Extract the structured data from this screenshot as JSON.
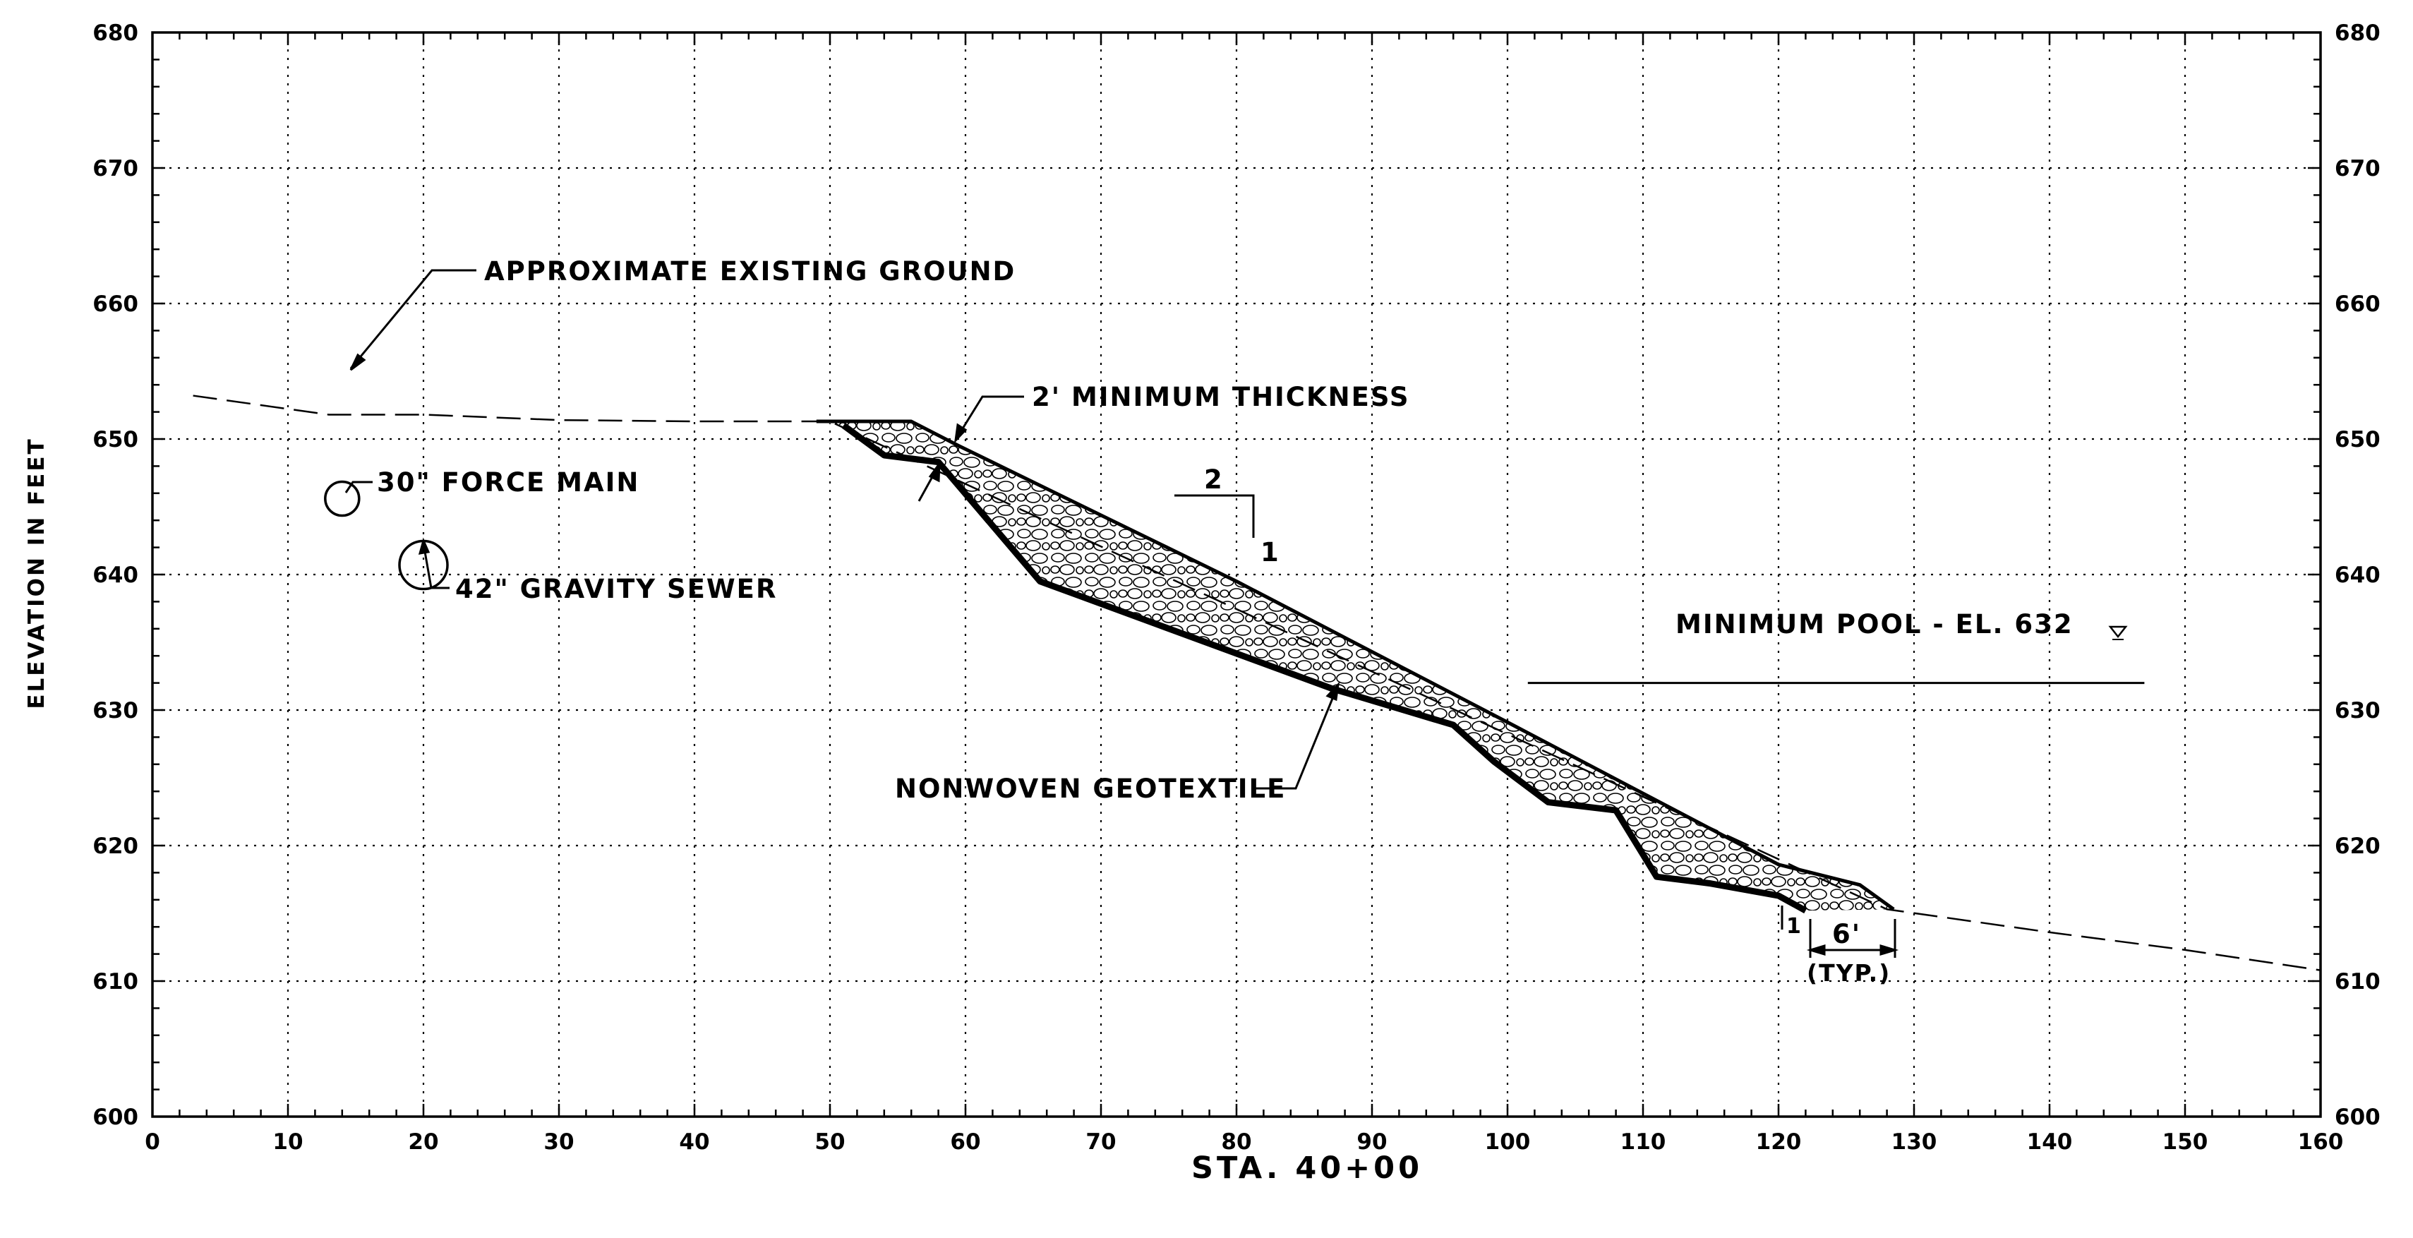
{
  "section": {
    "station_label": "STA. 40+00",
    "y_axis_title": "ELEVATION IN FEET",
    "x_ticks": [
      "0",
      "10",
      "20",
      "30",
      "40",
      "50",
      "60",
      "70",
      "80",
      "90",
      "100",
      "110",
      "120",
      "130",
      "140",
      "150",
      "160"
    ],
    "y_ticks": [
      "600",
      "610",
      "620",
      "630",
      "640",
      "650",
      "660",
      "670",
      "680"
    ],
    "x_range": [
      0,
      160
    ],
    "y_range": [
      600,
      680
    ],
    "grid": true,
    "notes": {
      "existing_ground": "APPROXIMATE EXISTING GROUND",
      "min_thickness": "2' MINIMUM THICKNESS",
      "force_main": "30\" FORCE MAIN",
      "gravity_sewer": "42\" GRAVITY SEWER",
      "geotextile": "NONWOVEN GEOTEXTILE",
      "min_pool": "MINIMUM POOL - EL. 632",
      "slope_run": "2",
      "slope_rise": "1",
      "toe_rise": "1",
      "toe_width": "6'",
      "toe_typ": "(TYP.)"
    }
  },
  "chart_data": {
    "type": "line",
    "title": "",
    "xlabel": "STA. 40+00",
    "ylabel": "ELEVATION IN FEET",
    "xlim": [
      0,
      160
    ],
    "ylim": [
      600,
      680
    ],
    "series": [
      {
        "name": "APPROXIMATE EXISTING GROUND",
        "style": "dashed",
        "x": [
          3,
          13,
          20,
          30,
          40,
          50,
          128,
          140,
          150,
          160
        ],
        "y": [
          653.2,
          651.8,
          651.8,
          651.4,
          651.3,
          651.3,
          615.3,
          613.6,
          612.3,
          610.8
        ]
      },
      {
        "name": "riprap-top",
        "style": "solid",
        "x": [
          49,
          56,
          59.5,
          80,
          100,
          120,
          126,
          128.5
        ],
        "y": [
          651.3,
          651.3,
          649.5,
          639.5,
          629.1,
          618.6,
          617.1,
          615.3
        ]
      },
      {
        "name": "riprap-bottom",
        "style": "solid",
        "x": [
          51,
          54,
          58,
          65.5,
          87,
          96,
          99,
          103,
          108,
          111,
          115,
          120,
          122
        ],
        "y": [
          651,
          648.8,
          648.3,
          639.5,
          631.6,
          628.9,
          626.2,
          623.2,
          622.6,
          617.7,
          617.2,
          616.3,
          615.2
        ]
      },
      {
        "name": "MINIMUM POOL - EL. 632",
        "style": "solid",
        "x": [
          101.5,
          147
        ],
        "y": [
          632,
          632
        ]
      }
    ],
    "pipes": [
      {
        "name": "30\" FORCE MAIN",
        "x": 14,
        "y": 645.6
      },
      {
        "name": "42\" GRAVITY SEWER",
        "x": 20,
        "y": 640.7
      }
    ]
  }
}
